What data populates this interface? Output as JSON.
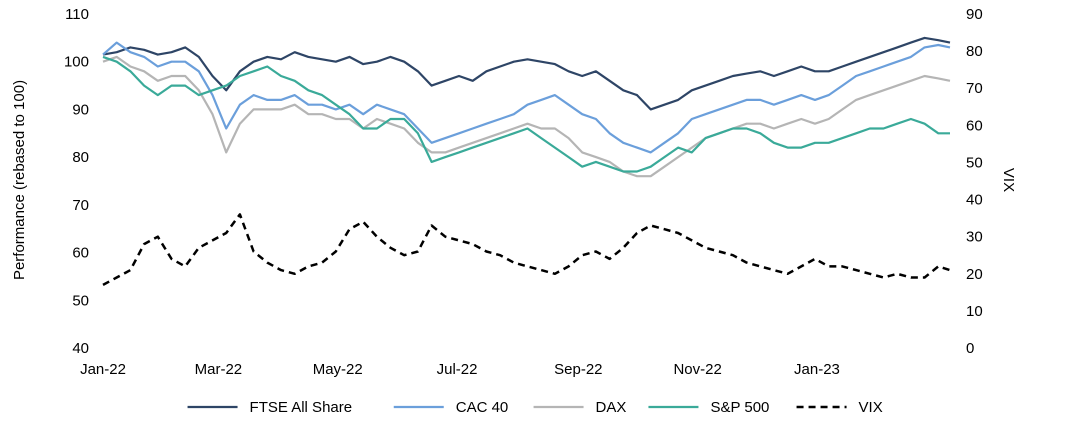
{
  "chart_data": {
    "type": "line",
    "title": "",
    "xlabel": "",
    "ylabel": "Performance (rebased to 100)",
    "y2label": "VIX",
    "ylim": [
      40,
      110
    ],
    "y2lim": [
      0,
      90
    ],
    "y_ticks": [
      "40",
      "50",
      "60",
      "70",
      "80",
      "90",
      "100",
      "110"
    ],
    "y2_ticks": [
      "0",
      "10",
      "20",
      "30",
      "40",
      "50",
      "60",
      "70",
      "80",
      "90"
    ],
    "x_ticks": [
      "Jan-22",
      "Mar-22",
      "May-22",
      "Jul-22",
      "Sep-22",
      "Nov-22",
      "Jan-23"
    ],
    "x_range": [
      "2022-01-01",
      "2023-03-10"
    ],
    "x_tick_dates": [
      "2022-01-01",
      "2022-03-01",
      "2022-05-01",
      "2022-07-01",
      "2022-09-01",
      "2022-11-01",
      "2023-01-01"
    ],
    "grid": false,
    "legend_position": "bottom",
    "series": [
      {
        "name": "FTSE All Share",
        "axis": "left",
        "color": "#2E4566",
        "dash": "solid",
        "x": [
          "2022-01-01",
          "2022-01-08",
          "2022-01-15",
          "2022-01-22",
          "2022-01-29",
          "2022-02-05",
          "2022-02-12",
          "2022-02-19",
          "2022-02-26",
          "2022-03-05",
          "2022-03-12",
          "2022-03-19",
          "2022-03-26",
          "2022-04-02",
          "2022-04-09",
          "2022-04-16",
          "2022-04-23",
          "2022-04-30",
          "2022-05-07",
          "2022-05-14",
          "2022-05-21",
          "2022-05-28",
          "2022-06-04",
          "2022-06-11",
          "2022-06-18",
          "2022-06-25",
          "2022-07-02",
          "2022-07-09",
          "2022-07-16",
          "2022-07-23",
          "2022-07-30",
          "2022-08-06",
          "2022-08-13",
          "2022-08-20",
          "2022-08-27",
          "2022-09-03",
          "2022-09-10",
          "2022-09-17",
          "2022-09-24",
          "2022-10-01",
          "2022-10-08",
          "2022-10-15",
          "2022-10-22",
          "2022-10-29",
          "2022-11-05",
          "2022-11-12",
          "2022-11-19",
          "2022-11-26",
          "2022-12-03",
          "2022-12-10",
          "2022-12-17",
          "2022-12-24",
          "2022-12-31",
          "2023-01-07",
          "2023-01-14",
          "2023-01-21",
          "2023-01-28",
          "2023-02-04",
          "2023-02-11",
          "2023-02-18",
          "2023-02-25",
          "2023-03-04",
          "2023-03-10"
        ],
        "values": [
          101.5,
          102,
          103,
          102.5,
          101.5,
          102,
          103,
          101,
          97,
          94,
          98,
          100,
          101,
          100.5,
          102,
          101,
          100.5,
          100,
          101,
          99.5,
          100,
          101,
          100,
          98,
          95,
          96,
          97,
          96,
          98,
          99,
          100,
          100.5,
          100,
          99.5,
          98,
          97,
          98,
          96,
          94,
          93,
          90,
          91,
          92,
          94,
          95,
          96,
          97,
          97.5,
          98,
          97,
          98,
          99,
          98,
          98,
          99,
          100,
          101,
          102,
          103,
          104,
          105,
          104.5,
          104
        ]
      },
      {
        "name": "CAC 40",
        "axis": "left",
        "color": "#6B9FDB",
        "dash": "solid",
        "x": [
          "2022-01-01",
          "2022-01-08",
          "2022-01-15",
          "2022-01-22",
          "2022-01-29",
          "2022-02-05",
          "2022-02-12",
          "2022-02-19",
          "2022-02-26",
          "2022-03-05",
          "2022-03-12",
          "2022-03-19",
          "2022-03-26",
          "2022-04-02",
          "2022-04-09",
          "2022-04-16",
          "2022-04-23",
          "2022-04-30",
          "2022-05-07",
          "2022-05-14",
          "2022-05-21",
          "2022-05-28",
          "2022-06-04",
          "2022-06-11",
          "2022-06-18",
          "2022-06-25",
          "2022-07-02",
          "2022-07-09",
          "2022-07-16",
          "2022-07-23",
          "2022-07-30",
          "2022-08-06",
          "2022-08-13",
          "2022-08-20",
          "2022-08-27",
          "2022-09-03",
          "2022-09-10",
          "2022-09-17",
          "2022-09-24",
          "2022-10-01",
          "2022-10-08",
          "2022-10-15",
          "2022-10-22",
          "2022-10-29",
          "2022-11-05",
          "2022-11-12",
          "2022-11-19",
          "2022-11-26",
          "2022-12-03",
          "2022-12-10",
          "2022-12-17",
          "2022-12-24",
          "2022-12-31",
          "2023-01-07",
          "2023-01-14",
          "2023-01-21",
          "2023-01-28",
          "2023-02-04",
          "2023-02-11",
          "2023-02-18",
          "2023-02-25",
          "2023-03-04",
          "2023-03-10"
        ],
        "values": [
          101.5,
          104,
          102,
          101,
          99,
          100,
          100,
          98,
          93,
          86,
          91,
          93,
          92,
          92,
          93,
          91,
          91,
          90,
          91,
          89,
          91,
          90,
          89,
          86,
          83,
          84,
          85,
          86,
          87,
          88,
          89,
          91,
          92,
          93,
          91,
          89,
          88,
          85,
          83,
          82,
          81,
          83,
          85,
          88,
          89,
          90,
          91,
          92,
          92,
          91,
          92,
          93,
          92,
          93,
          95,
          97,
          98,
          99,
          100,
          101,
          103,
          103.5,
          103
        ]
      },
      {
        "name": "DAX",
        "axis": "left",
        "color": "#B5B5B5",
        "dash": "solid",
        "x": [
          "2022-01-01",
          "2022-01-08",
          "2022-01-15",
          "2022-01-22",
          "2022-01-29",
          "2022-02-05",
          "2022-02-12",
          "2022-02-19",
          "2022-02-26",
          "2022-03-05",
          "2022-03-12",
          "2022-03-19",
          "2022-03-26",
          "2022-04-02",
          "2022-04-09",
          "2022-04-16",
          "2022-04-23",
          "2022-04-30",
          "2022-05-07",
          "2022-05-14",
          "2022-05-21",
          "2022-05-28",
          "2022-06-04",
          "2022-06-11",
          "2022-06-18",
          "2022-06-25",
          "2022-07-02",
          "2022-07-09",
          "2022-07-16",
          "2022-07-23",
          "2022-07-30",
          "2022-08-06",
          "2022-08-13",
          "2022-08-20",
          "2022-08-27",
          "2022-09-03",
          "2022-09-10",
          "2022-09-17",
          "2022-09-24",
          "2022-10-01",
          "2022-10-08",
          "2022-10-15",
          "2022-10-22",
          "2022-10-29",
          "2022-11-05",
          "2022-11-12",
          "2022-11-19",
          "2022-11-26",
          "2022-12-03",
          "2022-12-10",
          "2022-12-17",
          "2022-12-24",
          "2022-12-31",
          "2023-01-07",
          "2023-01-14",
          "2023-01-21",
          "2023-01-28",
          "2023-02-04",
          "2023-02-11",
          "2023-02-18",
          "2023-02-25",
          "2023-03-04",
          "2023-03-10"
        ],
        "values": [
          100,
          101,
          99,
          98,
          96,
          97,
          97,
          94,
          89,
          81,
          87,
          90,
          90,
          90,
          91,
          89,
          89,
          88,
          88,
          86,
          88,
          87,
          86,
          83,
          81,
          81,
          82,
          83,
          84,
          85,
          86,
          87,
          86,
          86,
          84,
          81,
          80,
          79,
          77,
          76,
          76,
          78,
          80,
          82,
          84,
          85,
          86,
          87,
          87,
          86,
          87,
          88,
          87,
          88,
          90,
          92,
          93,
          94,
          95,
          96,
          97,
          96.5,
          96
        ]
      },
      {
        "name": "S&P 500",
        "axis": "left",
        "color": "#3AAA99",
        "dash": "solid",
        "x": [
          "2022-01-01",
          "2022-01-08",
          "2022-01-15",
          "2022-01-22",
          "2022-01-29",
          "2022-02-05",
          "2022-02-12",
          "2022-02-19",
          "2022-02-26",
          "2022-03-05",
          "2022-03-12",
          "2022-03-19",
          "2022-03-26",
          "2022-04-02",
          "2022-04-09",
          "2022-04-16",
          "2022-04-23",
          "2022-04-30",
          "2022-05-07",
          "2022-05-14",
          "2022-05-21",
          "2022-05-28",
          "2022-06-04",
          "2022-06-11",
          "2022-06-18",
          "2022-06-25",
          "2022-07-02",
          "2022-07-09",
          "2022-07-16",
          "2022-07-23",
          "2022-07-30",
          "2022-08-06",
          "2022-08-13",
          "2022-08-20",
          "2022-08-27",
          "2022-09-03",
          "2022-09-10",
          "2022-09-17",
          "2022-09-24",
          "2022-10-01",
          "2022-10-08",
          "2022-10-15",
          "2022-10-22",
          "2022-10-29",
          "2022-11-05",
          "2022-11-12",
          "2022-11-19",
          "2022-11-26",
          "2022-12-03",
          "2022-12-10",
          "2022-12-17",
          "2022-12-24",
          "2022-12-31",
          "2023-01-07",
          "2023-01-14",
          "2023-01-21",
          "2023-01-28",
          "2023-02-04",
          "2023-02-11",
          "2023-02-18",
          "2023-02-25",
          "2023-03-04",
          "2023-03-10"
        ],
        "values": [
          101,
          100,
          98,
          95,
          93,
          95,
          95,
          93,
          94,
          95,
          97,
          98,
          99,
          97,
          96,
          94,
          93,
          91,
          89,
          86,
          86,
          88,
          88,
          85,
          79,
          80,
          81,
          82,
          83,
          84,
          85,
          86,
          84,
          82,
          80,
          78,
          79,
          78,
          77,
          77,
          78,
          80,
          82,
          81,
          84,
          85,
          86,
          86,
          85,
          83,
          82,
          82,
          83,
          83,
          84,
          85,
          86,
          86,
          87,
          88,
          87,
          85,
          85
        ]
      },
      {
        "name": "VIX",
        "axis": "right",
        "color": "#000000",
        "dash": "dashed",
        "x": [
          "2022-01-01",
          "2022-01-08",
          "2022-01-15",
          "2022-01-22",
          "2022-01-29",
          "2022-02-05",
          "2022-02-12",
          "2022-02-19",
          "2022-02-26",
          "2022-03-05",
          "2022-03-12",
          "2022-03-19",
          "2022-03-26",
          "2022-04-02",
          "2022-04-09",
          "2022-04-16",
          "2022-04-23",
          "2022-04-30",
          "2022-05-07",
          "2022-05-14",
          "2022-05-21",
          "2022-05-28",
          "2022-06-04",
          "2022-06-11",
          "2022-06-18",
          "2022-06-25",
          "2022-07-02",
          "2022-07-09",
          "2022-07-16",
          "2022-07-23",
          "2022-07-30",
          "2022-08-06",
          "2022-08-13",
          "2022-08-20",
          "2022-08-27",
          "2022-09-03",
          "2022-09-10",
          "2022-09-17",
          "2022-09-24",
          "2022-10-01",
          "2022-10-08",
          "2022-10-15",
          "2022-10-22",
          "2022-10-29",
          "2022-11-05",
          "2022-11-12",
          "2022-11-19",
          "2022-11-26",
          "2022-12-03",
          "2022-12-10",
          "2022-12-17",
          "2022-12-24",
          "2022-12-31",
          "2023-01-07",
          "2023-01-14",
          "2023-01-21",
          "2023-01-28",
          "2023-02-04",
          "2023-02-11",
          "2023-02-18",
          "2023-02-25",
          "2023-03-04",
          "2023-03-10"
        ],
        "values": [
          17,
          19,
          21,
          28,
          30,
          24,
          22,
          27,
          29,
          31,
          36,
          26,
          23,
          21,
          20,
          22,
          23,
          26,
          32,
          34,
          30,
          27,
          25,
          26,
          33,
          30,
          29,
          28,
          26,
          25,
          23,
          22,
          21,
          20,
          22,
          25,
          26,
          24,
          27,
          31,
          33,
          32,
          31,
          29,
          27,
          26,
          25,
          23,
          22,
          21,
          20,
          22,
          24,
          22,
          22,
          21,
          20,
          19,
          20,
          19,
          19,
          22,
          21
        ]
      }
    ]
  }
}
